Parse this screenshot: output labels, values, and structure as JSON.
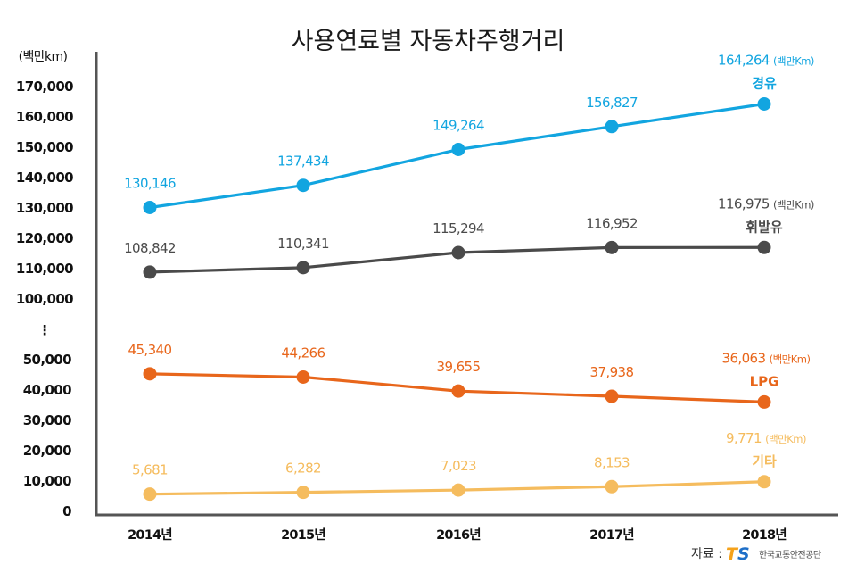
{
  "chart_data": {
    "type": "line",
    "title": "사용연료별 자동차주행거리",
    "ylabel": "(백만km)",
    "xlabel": "",
    "categories": [
      "2014년",
      "2015년",
      "2016년",
      "2017년",
      "2018년"
    ],
    "y_axis": {
      "broken": true,
      "upper_range": [
        100000,
        170000
      ],
      "lower_range": [
        0,
        50000
      ],
      "break_symbol": "⋮",
      "ticks": [
        "170,000",
        "160,000",
        "150,000",
        "140,000",
        "130,000",
        "120,000",
        "110,000",
        "100,000",
        "50,000",
        "40,000",
        "30,000",
        "20,000",
        "10,000",
        "0"
      ]
    },
    "grid": false,
    "series": [
      {
        "name": "경유",
        "color": "#12a5e0",
        "values": [
          130146,
          137434,
          149264,
          156827,
          164264
        ],
        "labels": [
          "130,146",
          "137,434",
          "149,264",
          "156,827",
          "164,264"
        ],
        "segment": "upper"
      },
      {
        "name": "휘발유",
        "color": "#4a4a4a",
        "values": [
          108842,
          110341,
          115294,
          116952,
          116975
        ],
        "labels": [
          "108,842",
          "110,341",
          "115,294",
          "116,952",
          "116,975"
        ],
        "segment": "upper"
      },
      {
        "name": "LPG",
        "color": "#e8661b",
        "values": [
          45340,
          44266,
          39655,
          37938,
          36063
        ],
        "labels": [
          "45,340",
          "44,266",
          "39,655",
          "37,938",
          "36,063"
        ],
        "segment": "lower"
      },
      {
        "name": "기타",
        "color": "#f5bc5e",
        "values": [
          5681,
          6282,
          7023,
          8153,
          9771
        ],
        "labels": [
          "5,681",
          "6,282",
          "7,023",
          "8,153",
          "9,771"
        ],
        "segment": "lower"
      }
    ],
    "end_unit_label": "(백만Km)",
    "source": {
      "prefix": "자료 :",
      "logo_text": "TS",
      "org_name": "한국교통안전공단",
      "logo_colors": [
        "#f5a21b",
        "#1e6fc8"
      ]
    }
  }
}
